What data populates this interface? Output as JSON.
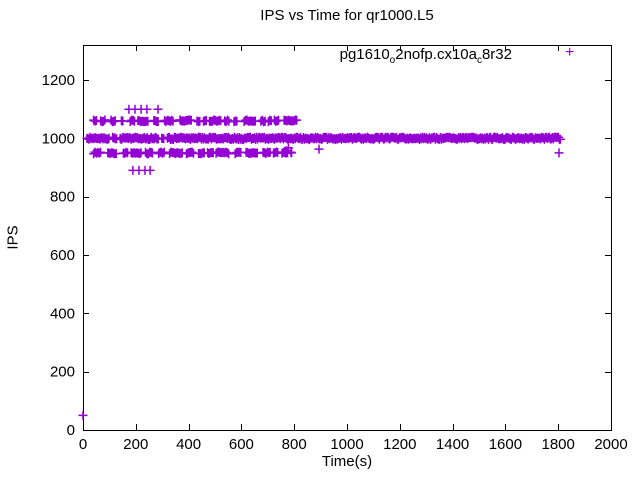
{
  "chart_data": {
    "type": "scatter",
    "title": "IPS vs Time for qr1000.L5",
    "xlabel": "Time(s)",
    "ylabel": "IPS",
    "xlim": [
      0,
      2000
    ],
    "ylim": [
      0,
      1320
    ],
    "x_ticks": [
      0,
      200,
      400,
      600,
      800,
      1000,
      1200,
      1400,
      1600,
      1800,
      2000
    ],
    "y_ticks": [
      0,
      200,
      400,
      600,
      800,
      1000,
      1200
    ],
    "grid": false,
    "legend_position": "top-right-inside",
    "series_color": "#9400d3",
    "legend": {
      "marker": "+",
      "label_plain": "pg1610_o2nofp.cx10a_c8r32",
      "parts": [
        {
          "t": "pg1610",
          "sub": false
        },
        {
          "t": "o",
          "sub": true
        },
        {
          "t": "2nofp.cx10a",
          "sub": false
        },
        {
          "t": "c",
          "sub": true
        },
        {
          "t": "8r32",
          "sub": false
        }
      ]
    },
    "bands": [
      {
        "name": "steady-band",
        "y": 1000,
        "x_start": 15,
        "x_end": 1810,
        "style": "solid",
        "seed": 11,
        "jitter": 1.2,
        "notch_until": 340
      },
      {
        "name": "upper-band",
        "y": 1060,
        "x_start": 40,
        "x_end": 822,
        "style": "dashes",
        "seed": 23,
        "jitter": 0.9
      },
      {
        "name": "lower-band",
        "y": 950,
        "x_start": 40,
        "x_end": 788,
        "style": "dashes",
        "seed": 37,
        "jitter": 0.9
      }
    ],
    "point_clusters": [
      {
        "y": 1100,
        "x": [
          174,
          197,
          220,
          242,
          284
        ]
      },
      {
        "y": 890,
        "x": [
          189,
          212,
          235,
          254
        ]
      }
    ],
    "outlier_points": [
      [
        0,
        50
      ],
      [
        770,
        958
      ],
      [
        778,
        968
      ],
      [
        790,
        950
      ],
      [
        894,
        963
      ],
      [
        1803,
        950
      ]
    ]
  }
}
